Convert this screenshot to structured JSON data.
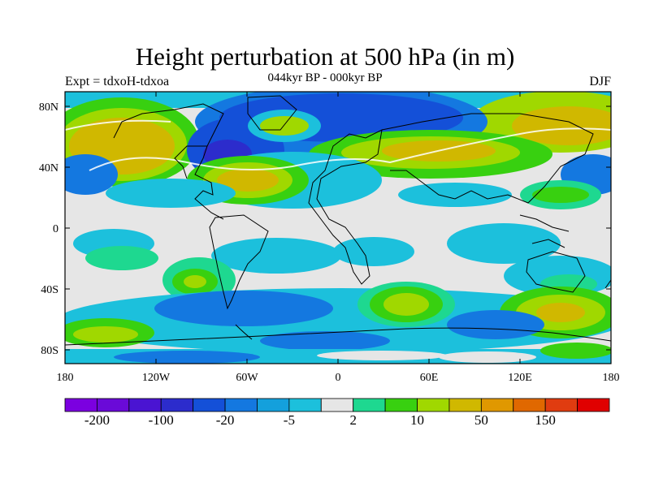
{
  "map": {
    "title": "Height perturbation at 500 hPa (in m)",
    "subtitle": "044kyr BP - 000kyr BP",
    "left_string": "Expt = tdxoH-tdxoa",
    "right_string": "DJF",
    "lat_labels": [
      "80N",
      "40N",
      "0",
      "40S",
      "80S"
    ],
    "lon_labels": [
      "180",
      "120W",
      "60W",
      "0",
      "60E",
      "120E",
      "180"
    ]
  },
  "colorbar": {
    "colors": [
      "#7b00e0",
      "#6a0ad8",
      "#4a14d2",
      "#2c2ccc",
      "#1450d8",
      "#1478e0",
      "#14a0dc",
      "#1cc0dc",
      "#e6e6e6",
      "#1ed890",
      "#38d010",
      "#a0d800",
      "#d0b800",
      "#e09800",
      "#e06800",
      "#e03c10",
      "#e00000"
    ],
    "labels": [
      {
        "text": "-200",
        "index": 1
      },
      {
        "text": "-100",
        "index": 3
      },
      {
        "text": "-20",
        "index": 5
      },
      {
        "text": "-5",
        "index": 7
      },
      {
        "text": "2",
        "index": 9
      },
      {
        "text": "10",
        "index": 11
      },
      {
        "text": "50",
        "index": 13
      },
      {
        "text": "150",
        "index": 15
      }
    ]
  }
}
